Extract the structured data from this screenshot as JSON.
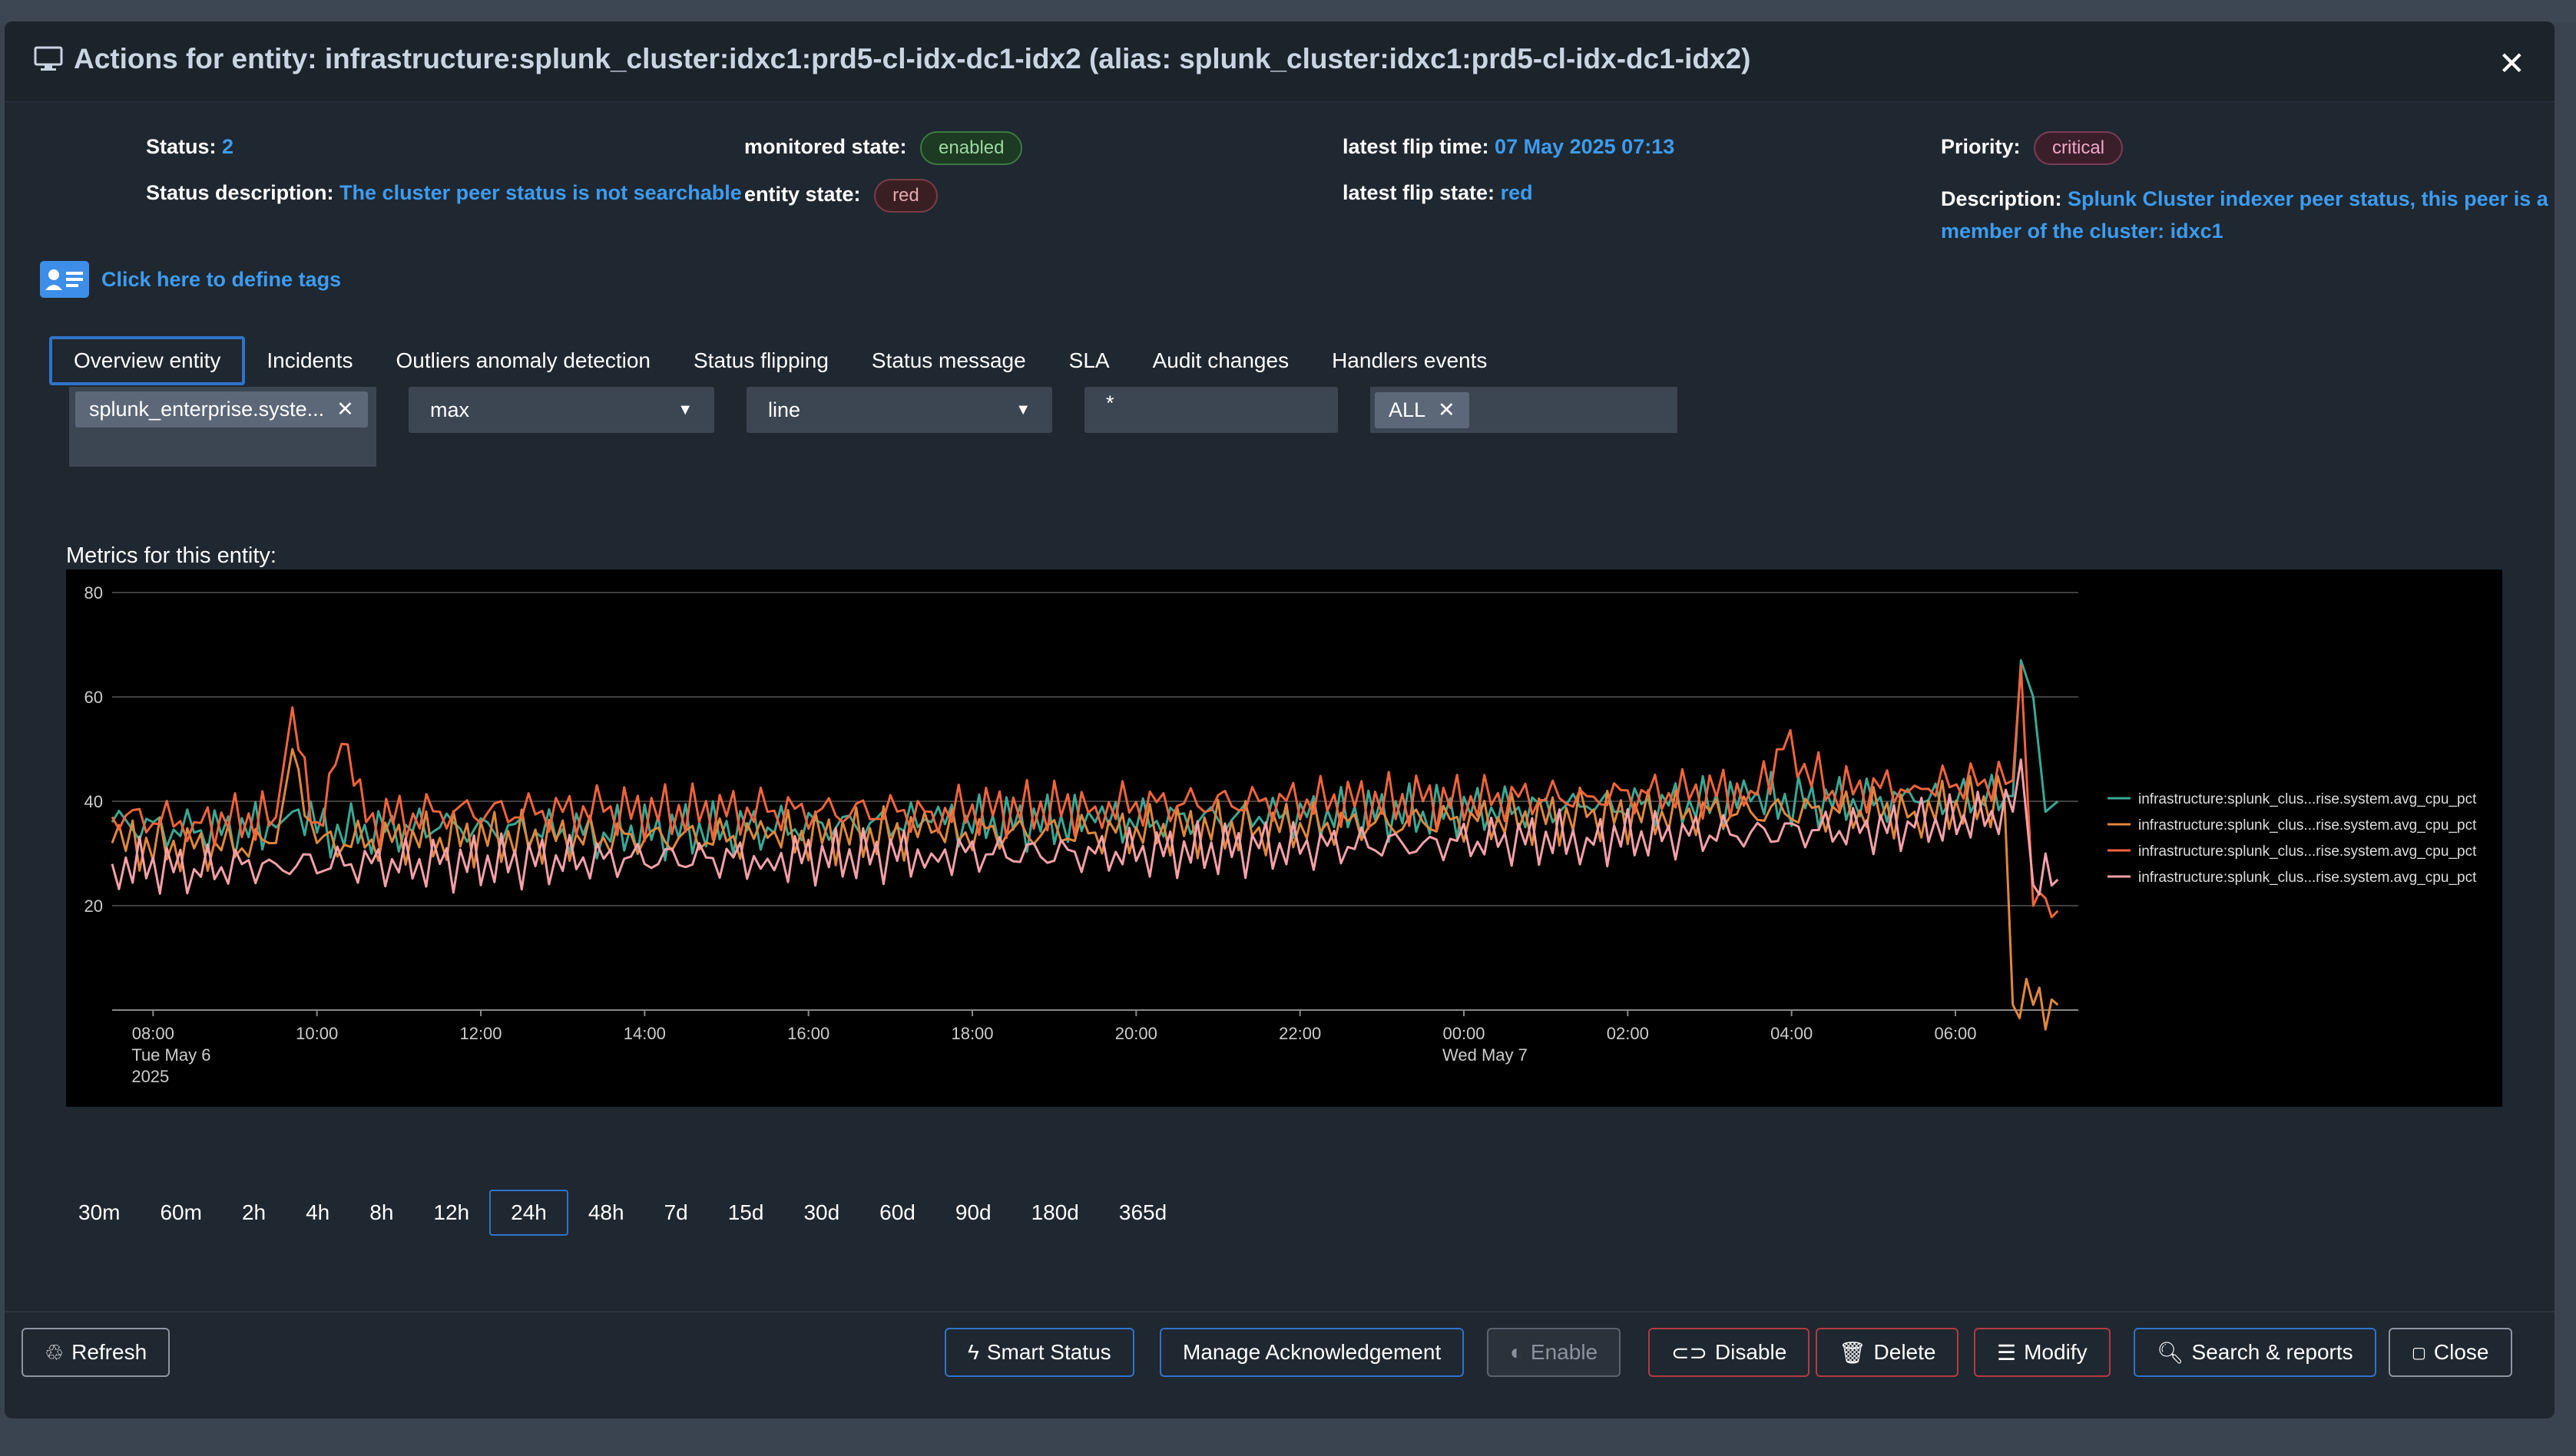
{
  "modal": {
    "title": "Actions for entity: infrastructure:splunk_cluster:idxc1:prd5-cl-idx-dc1-idx2 (alias: splunk_cluster:idxc1:prd5-cl-idx-dc1-idx2)",
    "close_symbol": "✕"
  },
  "info": {
    "status_label": "Status:",
    "status_value": "2",
    "status_desc_label": "Status description:",
    "status_desc_value": "The cluster peer status is not searchable",
    "monitored_state_label": "monitored state:",
    "monitored_state_value": "enabled",
    "entity_state_label": "entity state:",
    "entity_state_value": "red",
    "flip_time_label": "latest flip time:",
    "flip_time_value": "07 May 2025 07:13",
    "flip_state_label": "latest flip state:",
    "flip_state_value": "red",
    "priority_label": "Priority:",
    "priority_value": "critical",
    "description_label": "Description:",
    "description_value_line1": "Splunk Cluster indexer peer status, this peer is a",
    "description_value_line2": "member of the cluster: idxc1"
  },
  "tags": {
    "link": "Click here to define tags"
  },
  "tabs": [
    {
      "label": "Overview entity"
    },
    {
      "label": "Incidents"
    },
    {
      "label": "Outliers anomaly detection"
    },
    {
      "label": "Status flipping"
    },
    {
      "label": "Status message"
    },
    {
      "label": "SLA"
    },
    {
      "label": "Audit changes"
    },
    {
      "label": "Handlers events"
    }
  ],
  "controls": {
    "metric_chip": "splunk_enterprise.syste...",
    "aggregation": "max",
    "chart_type": "line",
    "filter": "*",
    "handlers_chip": "ALL"
  },
  "metrics_label": "Metrics for this entity:",
  "colors": {
    "series1": "#3aa895",
    "series2": "#e0873c",
    "series3": "#f0643c",
    "series4": "#f5a0a8",
    "accent": "#2f73c9"
  },
  "chart_data": {
    "type": "line",
    "title": "Metrics for this entity:",
    "x_ticks": [
      {
        "hour": 0.5,
        "label": "08:00",
        "sub1": "Tue May 6",
        "sub2": "2025"
      },
      {
        "hour": 2.5,
        "label": "10:00",
        "sub1": "",
        "sub2": ""
      },
      {
        "hour": 4.5,
        "label": "12:00",
        "sub1": "",
        "sub2": ""
      },
      {
        "hour": 6.5,
        "label": "14:00",
        "sub1": "",
        "sub2": ""
      },
      {
        "hour": 8.5,
        "label": "16:00",
        "sub1": "",
        "sub2": ""
      },
      {
        "hour": 10.5,
        "label": "18:00",
        "sub1": "",
        "sub2": ""
      },
      {
        "hour": 12.5,
        "label": "20:00",
        "sub1": "",
        "sub2": ""
      },
      {
        "hour": 14.5,
        "label": "22:00",
        "sub1": "",
        "sub2": ""
      },
      {
        "hour": 16.5,
        "label": "00:00",
        "sub1": "Wed May 7",
        "sub2": ""
      },
      {
        "hour": 18.5,
        "label": "02:00",
        "sub1": "",
        "sub2": ""
      },
      {
        "hour": 20.5,
        "label": "04:00",
        "sub1": "",
        "sub2": ""
      },
      {
        "hour": 22.5,
        "label": "06:00",
        "sub1": "",
        "sub2": ""
      }
    ],
    "xlim_hours": [
      0,
      24
    ],
    "y_ticks": [
      20,
      40,
      60,
      80
    ],
    "ylim": [
      0,
      80
    ],
    "gridlines": true,
    "legend_position": "right",
    "series": [
      {
        "name": "infrastructure:splunk_clus...rise.system.avg_cpu_pct",
        "points": [
          [
            0,
            36
          ],
          [
            1,
            34
          ],
          [
            2,
            35
          ],
          [
            2.2,
            38
          ],
          [
            2.5,
            34
          ],
          [
            4,
            35
          ],
          [
            6,
            34
          ],
          [
            8,
            35
          ],
          [
            10,
            36
          ],
          [
            12,
            36
          ],
          [
            14,
            37
          ],
          [
            16,
            38
          ],
          [
            18,
            39
          ],
          [
            20,
            40
          ],
          [
            22,
            40
          ],
          [
            23.2,
            41
          ],
          [
            23.3,
            67
          ],
          [
            23.45,
            60
          ],
          [
            23.6,
            38
          ],
          [
            23.75,
            40
          ]
        ]
      },
      {
        "name": "infrastructure:splunk_clus...rise.system.avg_cpu_pct",
        "points": [
          [
            0,
            32
          ],
          [
            1,
            31
          ],
          [
            2,
            32
          ],
          [
            2.2,
            50
          ],
          [
            2.5,
            32
          ],
          [
            4,
            33
          ],
          [
            6,
            33
          ],
          [
            8,
            33
          ],
          [
            10,
            34
          ],
          [
            12,
            34
          ],
          [
            14,
            35
          ],
          [
            16,
            36
          ],
          [
            18,
            37
          ],
          [
            20,
            38
          ],
          [
            22,
            38
          ],
          [
            23.1,
            40
          ],
          [
            23.2,
            1
          ],
          [
            23.45,
            1
          ],
          [
            23.75,
            1
          ]
        ]
      },
      {
        "name": "infrastructure:splunk_clus...rise.system.avg_cpu_pct",
        "points": [
          [
            0,
            37
          ],
          [
            1,
            36
          ],
          [
            2,
            37
          ],
          [
            2.2,
            58
          ],
          [
            2.5,
            36
          ],
          [
            2.8,
            51
          ],
          [
            3.1,
            36
          ],
          [
            4,
            38
          ],
          [
            6,
            38
          ],
          [
            8,
            38
          ],
          [
            10,
            38
          ],
          [
            12,
            39
          ],
          [
            14,
            40
          ],
          [
            16,
            40
          ],
          [
            18,
            41
          ],
          [
            20,
            42
          ],
          [
            20.4,
            50
          ],
          [
            21,
            42
          ],
          [
            22,
            43
          ],
          [
            23.2,
            44
          ],
          [
            23.3,
            66
          ],
          [
            23.45,
            20
          ],
          [
            23.75,
            19
          ]
        ]
      },
      {
        "name": "infrastructure:splunk_clus...rise.system.avg_cpu_pct",
        "points": [
          [
            0,
            28
          ],
          [
            1,
            27
          ],
          [
            2,
            28
          ],
          [
            4,
            28
          ],
          [
            6,
            29
          ],
          [
            8,
            29
          ],
          [
            10,
            30
          ],
          [
            12,
            30
          ],
          [
            14,
            31
          ],
          [
            16,
            32
          ],
          [
            18,
            33
          ],
          [
            20,
            34
          ],
          [
            22,
            35
          ],
          [
            23.2,
            38
          ],
          [
            23.3,
            48
          ],
          [
            23.45,
            24
          ],
          [
            23.75,
            25
          ]
        ]
      }
    ]
  },
  "time_ranges": [
    {
      "label": "30m"
    },
    {
      "label": "60m"
    },
    {
      "label": "2h"
    },
    {
      "label": "4h"
    },
    {
      "label": "8h"
    },
    {
      "label": "12h"
    },
    {
      "label": "24h"
    },
    {
      "label": "48h"
    },
    {
      "label": "7d"
    },
    {
      "label": "15d"
    },
    {
      "label": "30d"
    },
    {
      "label": "60d"
    },
    {
      "label": "90d"
    },
    {
      "label": "180d"
    },
    {
      "label": "365d"
    }
  ],
  "footer": {
    "refresh": "Refresh",
    "smart_status": "Smart Status",
    "manage_ack": "Manage Acknowledgement",
    "enable": "Enable",
    "disable": "Disable",
    "delete": "Delete",
    "modify": "Modify",
    "search_reports": "Search & reports",
    "close": "Close"
  }
}
